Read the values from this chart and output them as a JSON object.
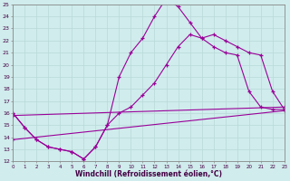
{
  "xlabel": "Windchill (Refroidissement éolien,°C)",
  "bg_color": "#d0ecec",
  "line_color": "#990099",
  "grid_color": "#b8d8d8",
  "xmin": 0,
  "xmax": 23,
  "ymin": 12,
  "ymax": 25,
  "lines": [
    {
      "x": [
        0,
        1,
        2,
        3,
        4,
        5,
        6,
        7,
        8,
        9,
        10,
        11,
        12,
        13,
        14,
        15,
        16,
        17,
        18,
        19,
        20,
        21,
        22,
        23
      ],
      "y": [
        16.0,
        14.8,
        13.8,
        13.2,
        13.0,
        12.8,
        12.2,
        13.2,
        15.0,
        19.0,
        21.0,
        22.2,
        24.0,
        25.5,
        24.8,
        23.5,
        22.2,
        21.5,
        21.0,
        20.8,
        17.8,
        16.5,
        16.3,
        16.3
      ]
    },
    {
      "x": [
        0,
        1,
        2,
        3,
        4,
        5,
        6,
        7,
        8,
        9,
        10,
        11,
        12,
        13,
        14,
        15,
        16,
        17,
        18,
        19,
        20,
        21,
        22,
        23
      ],
      "y": [
        16.0,
        14.8,
        13.8,
        13.2,
        13.0,
        12.8,
        12.2,
        13.2,
        15.0,
        16.0,
        16.5,
        17.5,
        18.5,
        20.0,
        21.5,
        22.5,
        22.2,
        22.5,
        22.0,
        21.5,
        21.0,
        20.8,
        17.8,
        16.3
      ]
    },
    {
      "x": [
        0,
        23
      ],
      "y": [
        15.8,
        16.5
      ]
    },
    {
      "x": [
        0,
        23
      ],
      "y": [
        13.8,
        16.2
      ]
    }
  ]
}
